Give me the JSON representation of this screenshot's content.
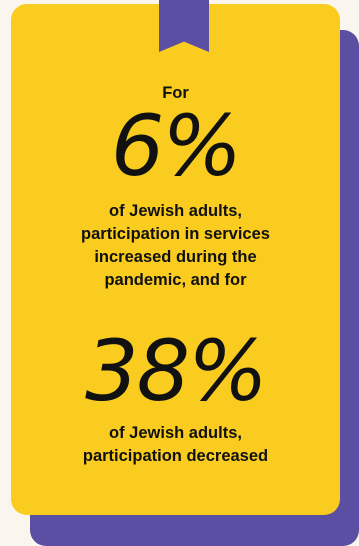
{
  "infographic": {
    "intro": "For",
    "stat_increase": "6%",
    "text_middle": "of Jewish adults,\nparticipation in services\nincreased during the\npandemic, and for",
    "stat_decrease": "38%",
    "text_end": "of Jewish adults,\nparticipation decreased"
  },
  "colors": {
    "card": "#f9cc1f",
    "accent": "#5a4fa2",
    "background": "#faf6ee",
    "text": "#111111"
  }
}
